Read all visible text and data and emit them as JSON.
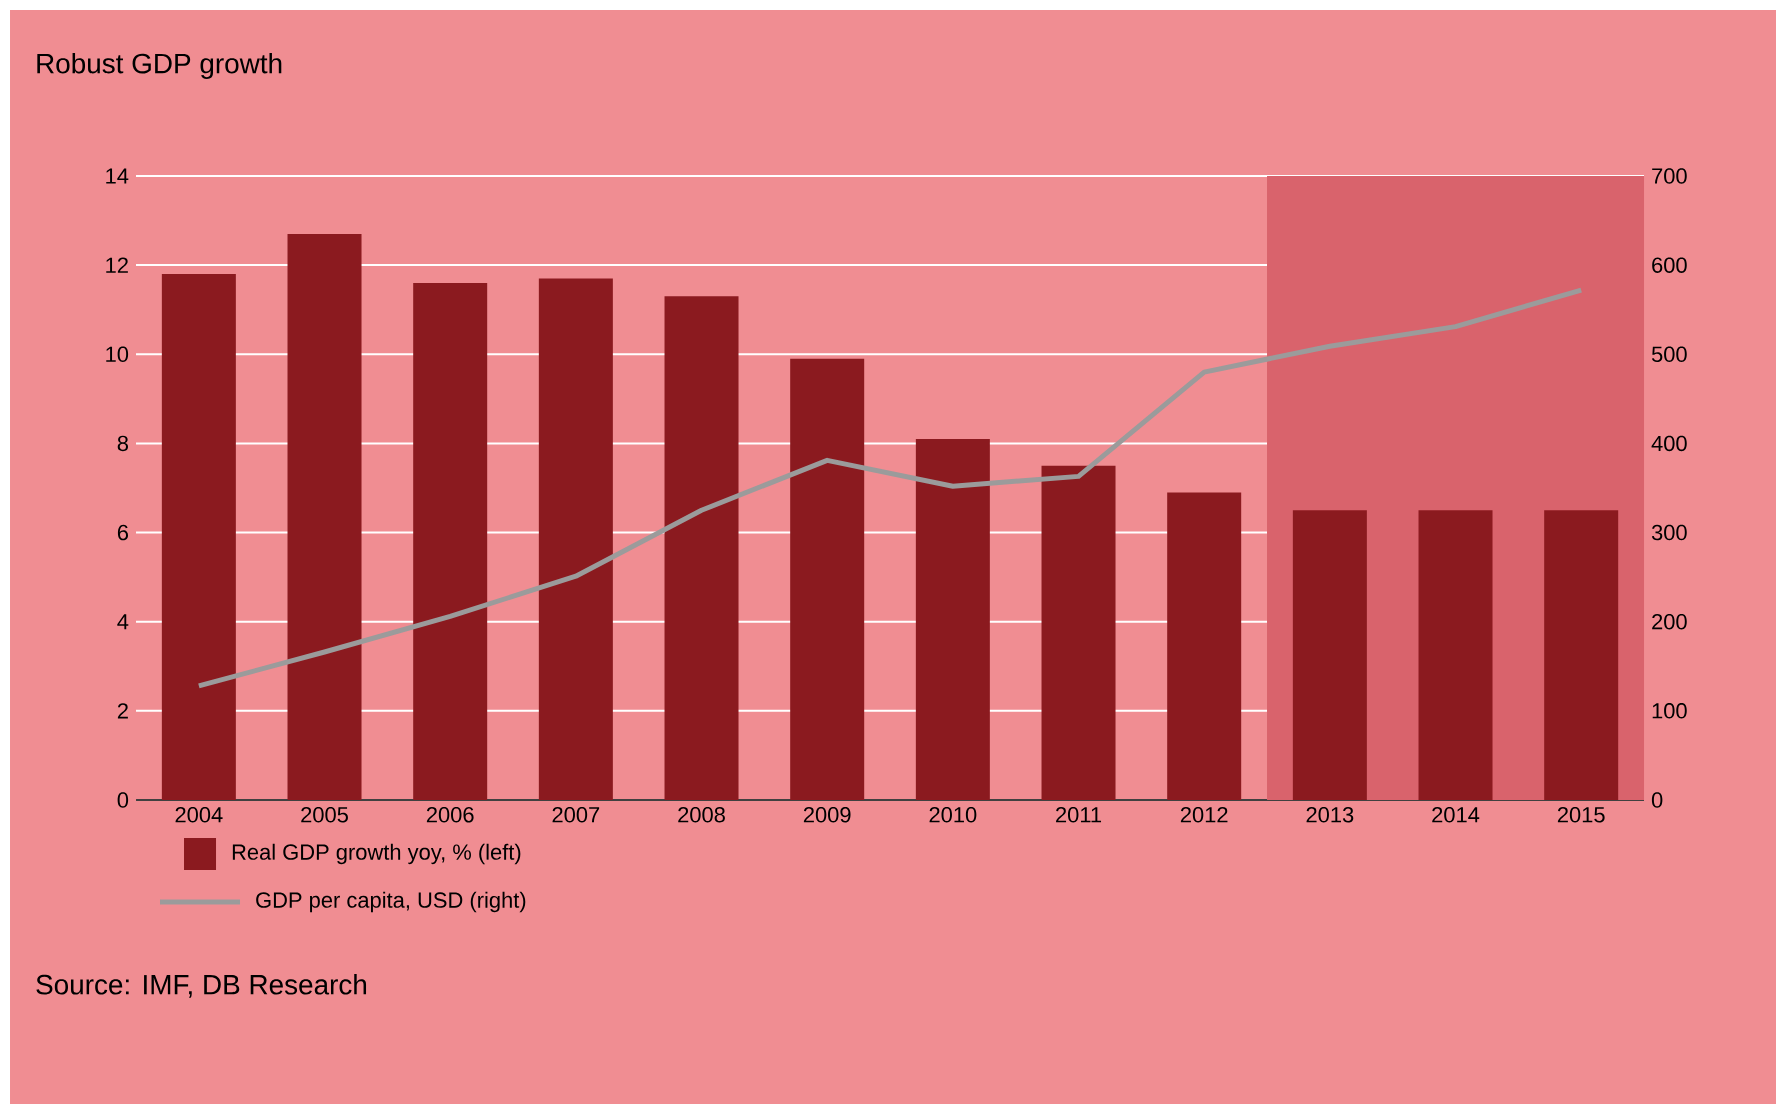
{
  "chart_data": {
    "type": "bar",
    "title": "Robust GDP growth",
    "categories": [
      "2004",
      "2005",
      "2006",
      "2007",
      "2008",
      "2009",
      "2010",
      "2011",
      "2012",
      "2013",
      "2014",
      "2015"
    ],
    "series": [
      {
        "name": "Real GDP growth yoy, % (left)",
        "color": "#8b1a1f",
        "values": [
          11.8,
          12.7,
          11.6,
          11.7,
          11.3,
          9.9,
          8.1,
          7.5,
          6.9,
          6.5,
          6.5,
          6.5
        ]
      },
      {
        "name": "GDP per capita, USD (right)",
        "type": "line",
        "axis": "y2",
        "color": "#9b9b9b",
        "values": [
          128,
          166,
          206,
          251,
          325,
          381,
          352,
          363,
          480,
          509,
          531,
          572
        ]
      }
    ],
    "ylim": [
      0,
      14
    ],
    "yticks": [
      0,
      2,
      4,
      6,
      8,
      10,
      12,
      14
    ],
    "y2lim": [
      0,
      700
    ],
    "y2ticks": [
      0,
      100,
      200,
      300,
      400,
      500,
      600,
      700
    ],
    "grid": "y",
    "legend": "bottom left",
    "bands": [
      {
        "axis": "x",
        "from": "2013",
        "to": "2015",
        "color": "#d9636c"
      }
    ],
    "annotations": [
      "Source: IMF, DB Research"
    ]
  }
}
